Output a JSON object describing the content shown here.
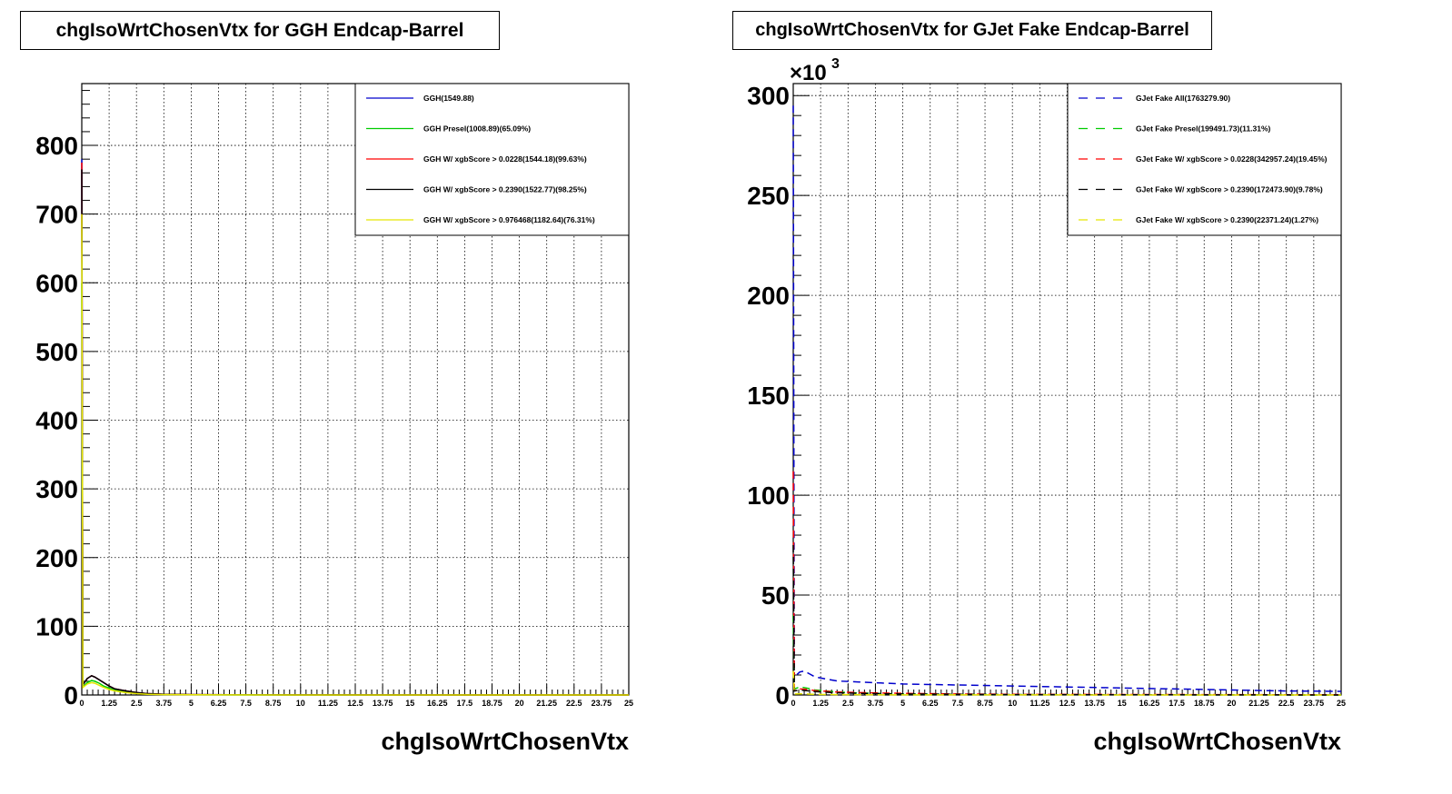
{
  "chart_data": [
    {
      "type": "line",
      "title": "chgIsoWrtChosenVtx for GGH Endcap-Barrel",
      "xlabel": "chgIsoWrtChosenVtx",
      "ylabel": "",
      "xlim": [
        0,
        25
      ],
      "ylim": [
        0,
        890
      ],
      "y_multiplier": "",
      "grid": true,
      "legend_position": "top-right",
      "x_ticks": [
        "0",
        "1.25",
        "2.5",
        "3.75",
        "5",
        "6.25",
        "7.5",
        "8.75",
        "10",
        "11.25",
        "12.5",
        "13.75",
        "15",
        "16.25",
        "17.5",
        "18.75",
        "20",
        "21.25",
        "22.5",
        "23.75",
        "25"
      ],
      "y_ticks": [
        0,
        100,
        200,
        300,
        400,
        500,
        600,
        700,
        800
      ],
      "y_tick_labels": [
        "0",
        "100",
        "200",
        "300",
        "400",
        "500",
        "600",
        "700",
        "800"
      ],
      "series": [
        {
          "name": "GGH(1549.88)",
          "color": "#0000cc",
          "dash": "solid",
          "x": [
            0,
            0.05,
            0.25,
            0.45,
            0.6,
            0.8,
            1.0,
            1.25,
            1.5,
            2.0,
            2.5,
            3.0,
            3.75,
            5,
            7.5,
            10,
            15,
            20,
            25
          ],
          "y": [
            780,
            15,
            24,
            28,
            26,
            22,
            18,
            13,
            9,
            6,
            3.5,
            2,
            1,
            0.5,
            0.2,
            0.1,
            0,
            0,
            0
          ]
        },
        {
          "name": "GGH Presel(1008.89)(65.09%)",
          "color": "#00cc00",
          "dash": "solid",
          "x": [
            0,
            0.05,
            0.25,
            0.45,
            0.6,
            0.8,
            1.0,
            1.25,
            1.5,
            2.0,
            2.5,
            3.0,
            3.75,
            5,
            10,
            25
          ],
          "y": [
            600,
            12,
            18,
            21,
            20,
            17,
            13,
            10,
            7,
            4,
            2.5,
            1.5,
            0.8,
            0.3,
            0,
            0
          ]
        },
        {
          "name": "GGH W/ xgbScore > 0.0228(1544.18)(99.63%)",
          "color": "#ff0000",
          "dash": "solid",
          "x": [
            0,
            0.05,
            0.25,
            0.45,
            0.6,
            0.8,
            1.0,
            1.25,
            1.5,
            2.0,
            2.5,
            3.0,
            3.75,
            5,
            7.5,
            10,
            25
          ],
          "y": [
            775,
            15,
            24,
            28,
            26,
            22,
            18,
            13,
            9,
            6,
            3.5,
            2,
            1,
            0.5,
            0.2,
            0.1,
            0
          ]
        },
        {
          "name": "GGH W/ xgbScore > 0.2390(1522.77)(98.25%)",
          "color": "#000000",
          "dash": "solid",
          "x": [
            0,
            0.05,
            0.25,
            0.45,
            0.6,
            0.8,
            1.0,
            1.25,
            1.5,
            2.0,
            2.5,
            3.0,
            3.75,
            5,
            7.5,
            10,
            25
          ],
          "y": [
            765,
            15,
            24,
            28,
            26,
            22,
            18,
            13,
            9,
            6,
            3.5,
            2,
            1,
            0.5,
            0.2,
            0.1,
            0
          ]
        },
        {
          "name": "GGH W/ xgbScore > 0.976468(1182.64)(76.31%)",
          "color": "#e6e600",
          "dash": "solid",
          "x": [
            0,
            0.05,
            0.25,
            0.45,
            0.6,
            0.8,
            1.0,
            1.25,
            1.5,
            2.0,
            2.5,
            3.0,
            3.75,
            5,
            10,
            25
          ],
          "y": [
            700,
            11,
            16,
            18,
            17,
            14,
            11,
            8,
            6,
            3.5,
            2,
            1,
            0.5,
            0.2,
            0,
            0
          ]
        }
      ]
    },
    {
      "type": "line",
      "title": "chgIsoWrtChosenVtx for GJet Fake Endcap-Barrel",
      "xlabel": "chgIsoWrtChosenVtx",
      "ylabel": "",
      "xlim": [
        0,
        25
      ],
      "ylim": [
        0,
        306
      ],
      "y_multiplier": "×10",
      "y_multiplier_exp": "3",
      "grid": true,
      "legend_position": "top-right",
      "x_ticks": [
        "0",
        "1.25",
        "2.5",
        "3.75",
        "5",
        "6.25",
        "7.5",
        "8.75",
        "10",
        "11.25",
        "12.5",
        "13.75",
        "15",
        "16.25",
        "17.5",
        "18.75",
        "20",
        "21.25",
        "22.5",
        "23.75",
        "25"
      ],
      "y_ticks": [
        0,
        50,
        100,
        150,
        200,
        250,
        300
      ],
      "y_tick_labels": [
        "0",
        "50",
        "100",
        "150",
        "200",
        "250",
        "300"
      ],
      "series": [
        {
          "name": "GJet Fake All(1763279.90)",
          "color": "#0000cc",
          "dash": "dashed",
          "x": [
            0,
            0.05,
            0.15,
            0.3,
            0.5,
            0.75,
            1.0,
            1.5,
            2.0,
            3.0,
            4.0,
            5.0,
            7.5,
            10,
            12.5,
            15,
            17.5,
            20,
            22.5,
            25
          ],
          "y": [
            295,
            8,
            10,
            11.5,
            12,
            10.5,
            9,
            8,
            7,
            6.5,
            6,
            5.5,
            5,
            4.5,
            4,
            3.5,
            3,
            2.5,
            2,
            1.8
          ]
        },
        {
          "name": "GJet Fake Presel(199491.73)(11.31%)",
          "color": "#00cc00",
          "dash": "dashed",
          "x": [
            0,
            0.05,
            0.3,
            0.6,
            1.0,
            2.0,
            3.0,
            5.0,
            10,
            25
          ],
          "y": [
            40,
            3,
            4,
            3.5,
            2.5,
            1.5,
            1,
            0.5,
            0.2,
            0
          ]
        },
        {
          "name": "GJet Fake W/ xgbScore > 0.0228(342957.24)(19.45%)",
          "color": "#ff0000",
          "dash": "dashed",
          "x": [
            0,
            0.05,
            0.3,
            0.6,
            1.0,
            2.0,
            3.0,
            5.0,
            7.5,
            10,
            25
          ],
          "y": [
            112,
            2.5,
            3,
            2.8,
            2.2,
            1.5,
            1.2,
            0.8,
            0.5,
            0.3,
            0.1
          ]
        },
        {
          "name": "GJet Fake W/ xgbScore > 0.2390(172473.90)(9.78%)",
          "color": "#000000",
          "dash": "dashed",
          "x": [
            0,
            0.05,
            0.3,
            0.6,
            1.0,
            2.0,
            3.0,
            5.0,
            10,
            25
          ],
          "y": [
            75,
            2,
            2.5,
            2.2,
            1.7,
            1.1,
            0.8,
            0.5,
            0.2,
            0
          ]
        },
        {
          "name": "GJet Fake W/ xgbScore > 0.2390(22371.24)(1.27%)",
          "color": "#e6e600",
          "dash": "dashed",
          "x": [
            0,
            0.05,
            0.3,
            0.6,
            1.0,
            2.0,
            5.0,
            25
          ],
          "y": [
            12,
            0.5,
            0.6,
            0.5,
            0.3,
            0.2,
            0.05,
            0
          ]
        }
      ]
    }
  ]
}
